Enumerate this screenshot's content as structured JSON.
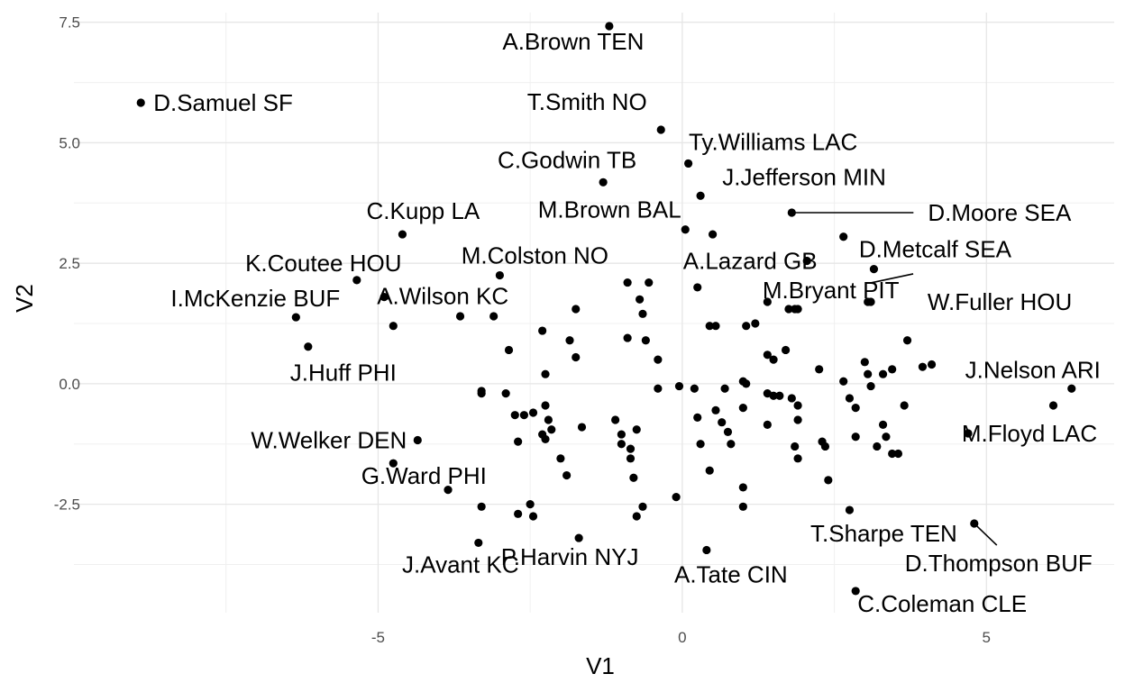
{
  "chart_data": {
    "type": "scatter",
    "title": "",
    "xlabel": "V1",
    "ylabel": "V2",
    "xlim": [
      -10.0,
      7.1
    ],
    "ylim": [
      -4.75,
      7.7
    ],
    "xticks": [
      -5,
      0,
      5
    ],
    "xtick_labels": [
      "-5",
      "0",
      "5"
    ],
    "yticks": [
      -2.5,
      0.0,
      2.5,
      5.0,
      7.5
    ],
    "ytick_labels": [
      "-2.5",
      "0.0",
      "2.5",
      "5.0",
      "7.5"
    ],
    "grid": true,
    "labeled_points": [
      {
        "label": "A.Brown TEN",
        "x": -1.2,
        "y": 7.42
      },
      {
        "label": "D.Samuel SF",
        "x": -8.9,
        "y": 5.83
      },
      {
        "label": "T.Smith NO",
        "x": -0.35,
        "y": 5.27
      },
      {
        "label": "Ty.Williams LAC",
        "x": 0.1,
        "y": 4.57
      },
      {
        "label": "C.Godwin TB",
        "x": -1.3,
        "y": 4.18
      },
      {
        "label": "J.Jefferson MIN",
        "x": 0.3,
        "y": 3.9
      },
      {
        "label": "D.Moore SEA",
        "x": 1.8,
        "y": 3.55
      },
      {
        "label": "M.Brown BAL",
        "x": 0.05,
        "y": 3.2
      },
      {
        "label": "C.Kupp LA",
        "x": -4.6,
        "y": 3.1
      },
      {
        "label": "A.Lazard GB",
        "x": 2.05,
        "y": 2.55
      },
      {
        "label": "D.Metcalf SEA",
        "x": 3.15,
        "y": 2.38
      },
      {
        "label": "K.Coutee HOU",
        "x": -5.35,
        "y": 2.15
      },
      {
        "label": "M.Colston NO",
        "x": -3.0,
        "y": 2.25
      },
      {
        "label": "W.Fuller HOU",
        "x": 3.1,
        "y": 1.7
      },
      {
        "label": "M.Bryant PIT",
        "x": 1.85,
        "y": 1.55
      },
      {
        "label": "A.Wilson KC",
        "x": -4.9,
        "y": 1.8
      },
      {
        "label": "I.McKenzie BUF",
        "x": -6.35,
        "y": 1.38
      },
      {
        "label": "J.Huff PHI",
        "x": -6.15,
        "y": 0.77
      },
      {
        "label": "J.Nelson ARI",
        "x": 6.4,
        "y": -0.1
      },
      {
        "label": "M.Floyd LAC",
        "x": 4.7,
        "y": -1.03
      },
      {
        "label": "W.Welker DEN",
        "x": -4.35,
        "y": -1.17
      },
      {
        "label": "G.Ward PHI",
        "x": -4.75,
        "y": -1.65
      },
      {
        "label": "G.Ward PHI",
        "x": -3.85,
        "y": -2.2
      },
      {
        "label": "T.Sharpe TEN",
        "x": 2.75,
        "y": -2.62
      },
      {
        "label": "D.Thompson BUF",
        "x": 4.8,
        "y": -2.9
      },
      {
        "label": "J.Avant KC",
        "x": -3.35,
        "y": -3.3
      },
      {
        "label": "P.Harvin NYJ",
        "x": -1.7,
        "y": -3.2
      },
      {
        "label": "A.Tate CIN",
        "x": 0.4,
        "y": -3.45
      },
      {
        "label": "C.Coleman CLE",
        "x": 2.85,
        "y": -4.3
      }
    ],
    "unlabeled_points": [
      [
        -4.75,
        1.2
      ],
      [
        -3.65,
        1.4
      ],
      [
        -3.1,
        1.4
      ],
      [
        -0.9,
        2.1
      ],
      [
        -0.55,
        2.1
      ],
      [
        -0.7,
        1.75
      ],
      [
        -0.65,
        1.45
      ],
      [
        -1.75,
        1.55
      ],
      [
        -0.9,
        0.95
      ],
      [
        -0.6,
        0.9
      ],
      [
        -1.85,
        0.9
      ],
      [
        -1.75,
        0.55
      ],
      [
        -2.3,
        1.1
      ],
      [
        -2.85,
        0.7
      ],
      [
        -2.25,
        0.2
      ],
      [
        -0.4,
        0.5
      ],
      [
        -0.4,
        -0.1
      ],
      [
        0.5,
        3.1
      ],
      [
        0.25,
        2.0
      ],
      [
        0.45,
        1.2
      ],
      [
        0.55,
        1.2
      ],
      [
        1.05,
        1.2
      ],
      [
        1.2,
        1.25
      ],
      [
        1.4,
        1.7
      ],
      [
        1.7,
        0.7
      ],
      [
        1.4,
        0.6
      ],
      [
        1.5,
        0.5
      ],
      [
        1.75,
        1.55
      ],
      [
        1.9,
        1.55
      ],
      [
        2.25,
        0.3
      ],
      [
        2.65,
        3.05
      ],
      [
        2.65,
        0.05
      ],
      [
        3.05,
        1.7
      ],
      [
        3.7,
        0.9
      ],
      [
        3.95,
        0.35
      ],
      [
        4.1,
        0.4
      ],
      [
        3.45,
        0.3
      ],
      [
        3.3,
        0.2
      ],
      [
        3.0,
        0.45
      ],
      [
        3.05,
        0.2
      ],
      [
        3.1,
        -0.05
      ],
      [
        3.65,
        -0.45
      ],
      [
        3.3,
        -0.85
      ],
      [
        3.35,
        -1.1
      ],
      [
        3.2,
        -1.3
      ],
      [
        3.45,
        -1.45
      ],
      [
        3.55,
        -1.45
      ],
      [
        2.85,
        -0.5
      ],
      [
        2.75,
        -0.3
      ],
      [
        2.85,
        -1.1
      ],
      [
        6.1,
        -0.45
      ],
      [
        -3.3,
        -0.15
      ],
      [
        -3.3,
        -0.2
      ],
      [
        -2.9,
        -0.2
      ],
      [
        -2.75,
        -0.65
      ],
      [
        -2.6,
        -0.65
      ],
      [
        -2.45,
        -0.6
      ],
      [
        -2.25,
        -0.45
      ],
      [
        -2.2,
        -0.75
      ],
      [
        -2.15,
        -0.95
      ],
      [
        -2.3,
        -1.05
      ],
      [
        -2.25,
        -1.15
      ],
      [
        -2.7,
        -1.2
      ],
      [
        -1.65,
        -0.9
      ],
      [
        -2.0,
        -1.55
      ],
      [
        -1.9,
        -1.9
      ],
      [
        -2.5,
        -2.5
      ],
      [
        -2.7,
        -2.7
      ],
      [
        -2.45,
        -2.75
      ],
      [
        -3.3,
        -2.55
      ],
      [
        -1.1,
        -0.75
      ],
      [
        -1.0,
        -1.05
      ],
      [
        -1.0,
        -1.25
      ],
      [
        -0.85,
        -1.35
      ],
      [
        -0.75,
        -0.95
      ],
      [
        -0.85,
        -1.55
      ],
      [
        -0.8,
        -1.95
      ],
      [
        -0.65,
        -2.55
      ],
      [
        -0.75,
        -2.75
      ],
      [
        -0.1,
        -2.35
      ],
      [
        1.0,
        -2.15
      ],
      [
        1.0,
        -2.55
      ],
      [
        0.3,
        -1.25
      ],
      [
        0.45,
        -1.8
      ],
      [
        0.25,
        -0.7
      ],
      [
        0.55,
        -0.55
      ],
      [
        0.65,
        -0.8
      ],
      [
        0.75,
        -1.0
      ],
      [
        0.8,
        -1.25
      ],
      [
        0.7,
        -0.1
      ],
      [
        1.0,
        0.05
      ],
      [
        1.05,
        0.0
      ],
      [
        1.0,
        -0.5
      ],
      [
        1.4,
        -0.2
      ],
      [
        1.5,
        -0.25
      ],
      [
        1.6,
        -0.25
      ],
      [
        1.4,
        -0.85
      ],
      [
        1.8,
        -0.3
      ],
      [
        1.9,
        -0.45
      ],
      [
        1.9,
        -0.75
      ],
      [
        1.85,
        -1.3
      ],
      [
        1.9,
        -1.55
      ],
      [
        2.35,
        -1.3
      ],
      [
        2.4,
        -2.0
      ],
      [
        2.3,
        -1.2
      ],
      [
        -0.05,
        -0.05
      ],
      [
        0.2,
        -0.1
      ]
    ]
  }
}
